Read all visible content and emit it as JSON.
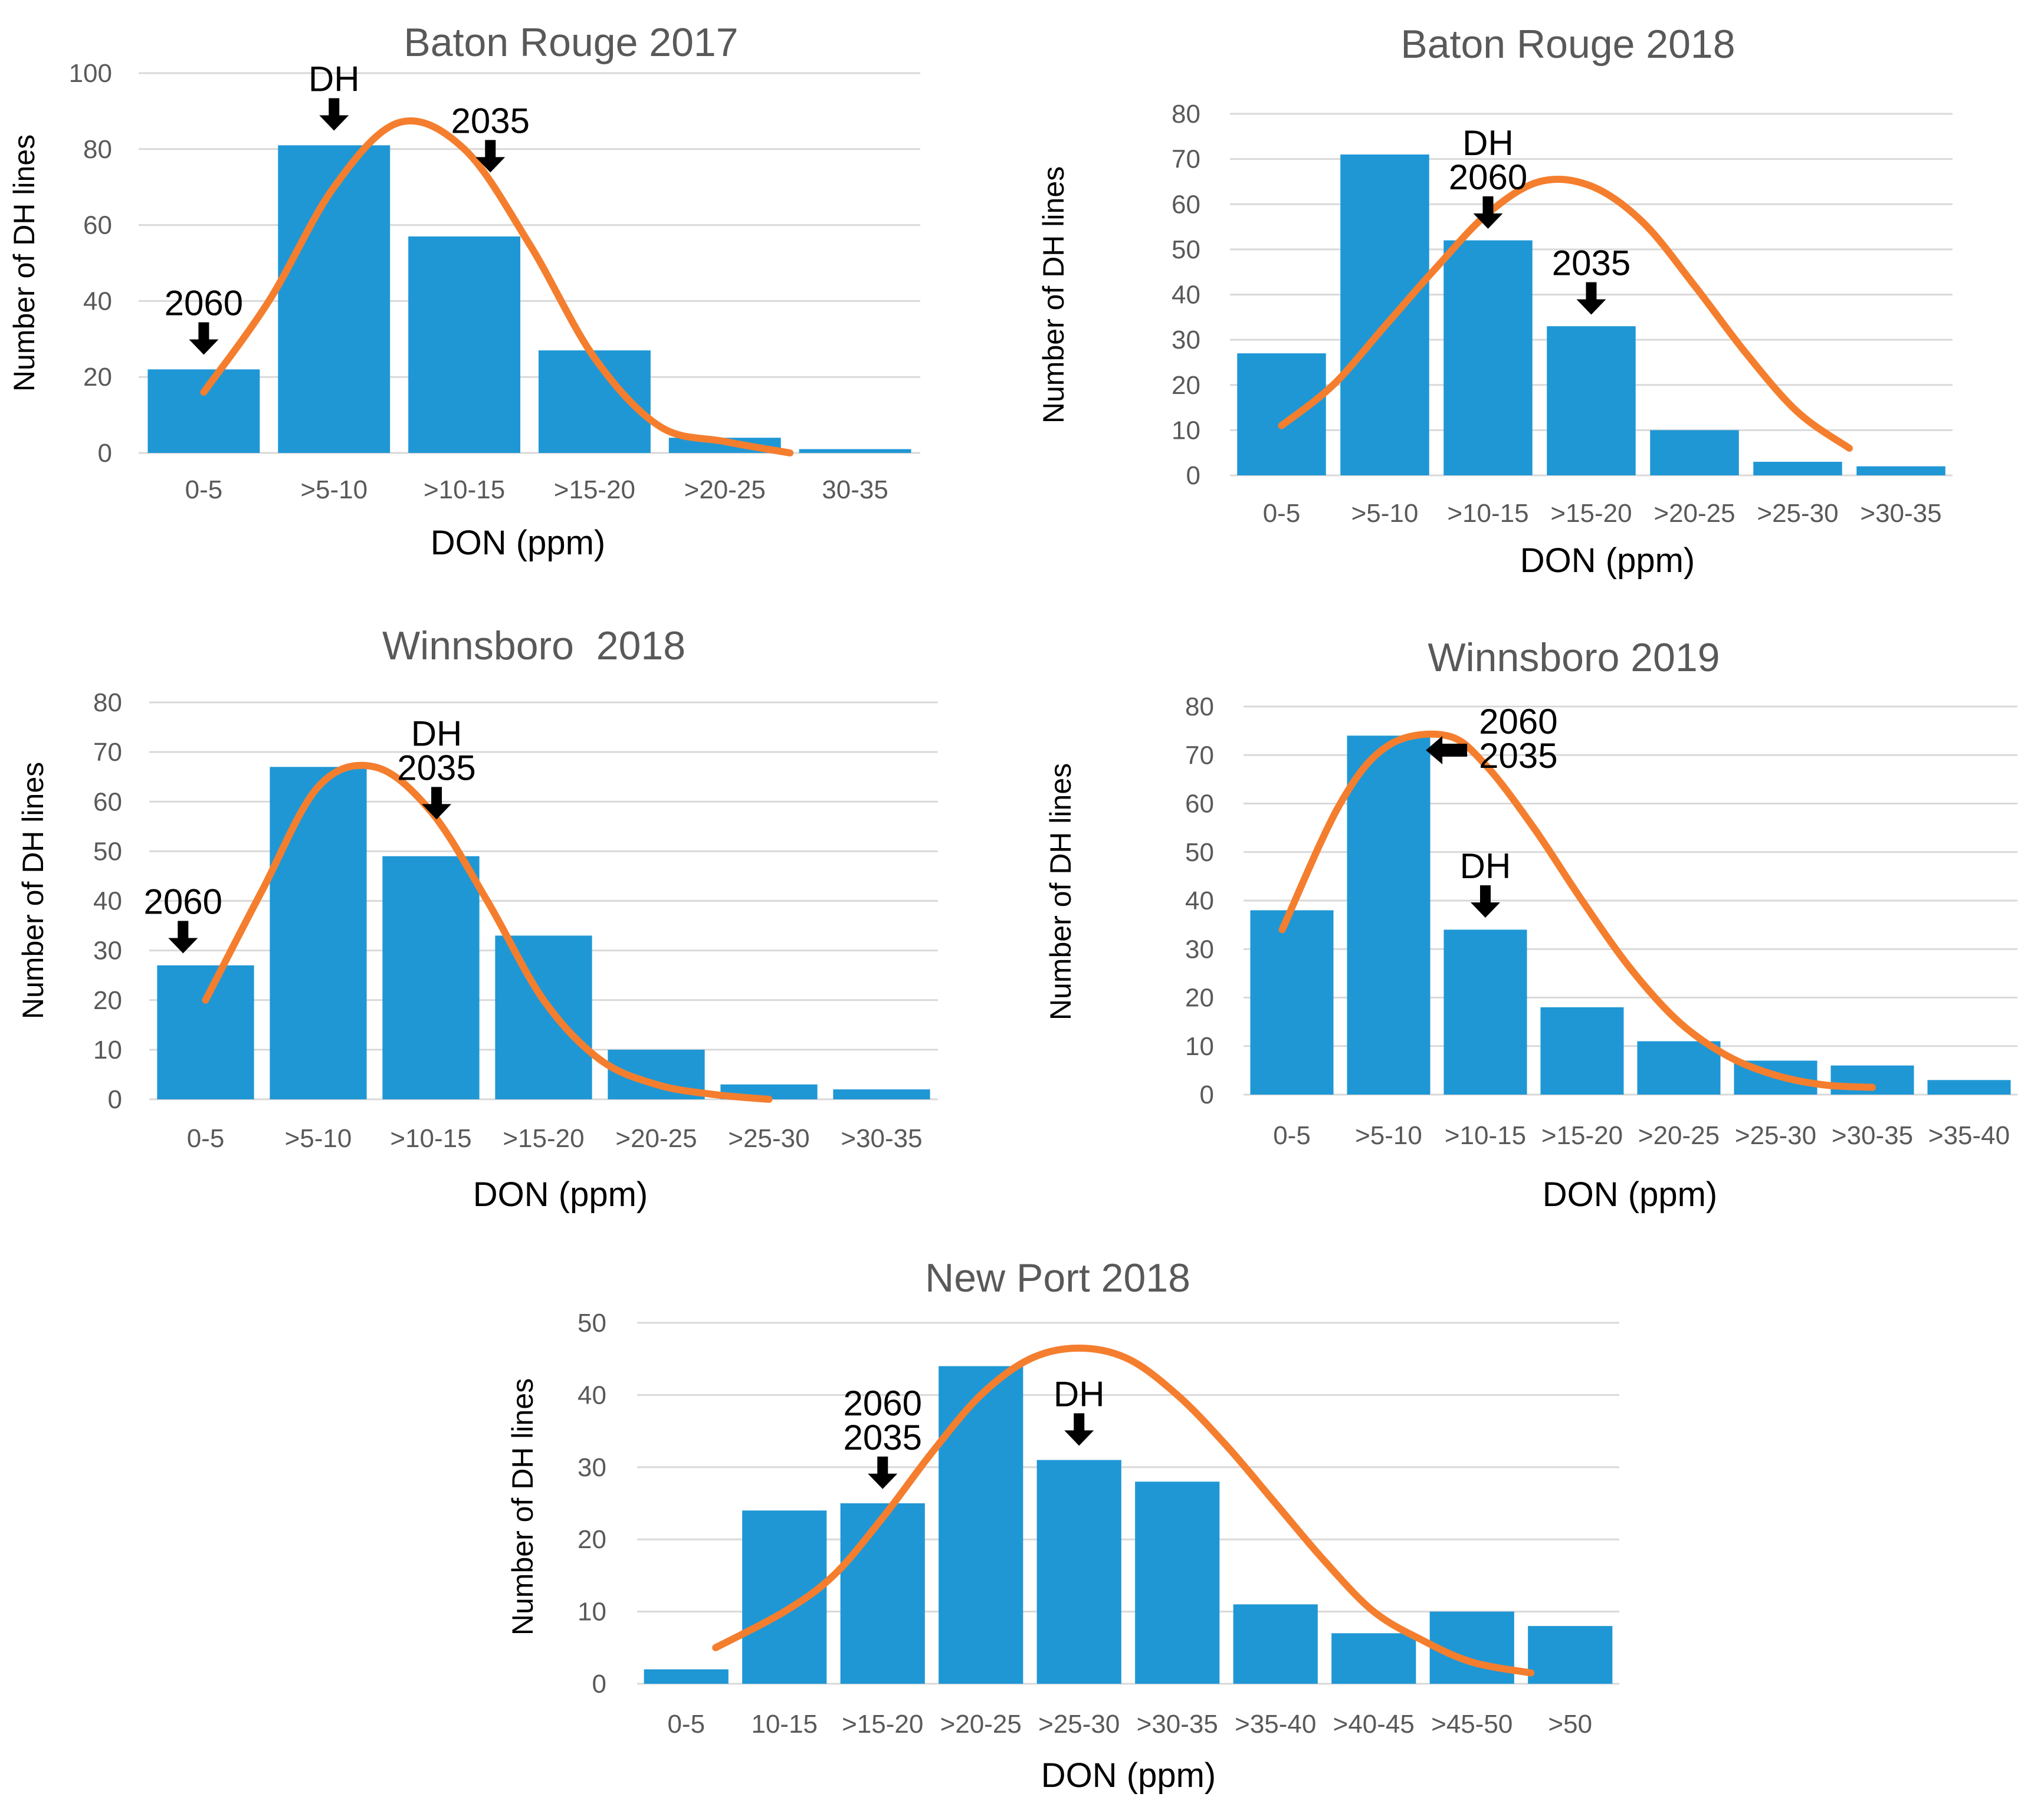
{
  "colors": {
    "bar": "#1f97d5",
    "curve": "#f47e2e",
    "grid": "#d9d9d9",
    "arrow": "#000000"
  },
  "chart_data": [
    {
      "type": "bar",
      "title": "Baton Rouge 2017",
      "xlabel": "DON (ppm)",
      "ylabel": "Number of DH lines",
      "ylim": [
        0,
        100
      ],
      "yticks": [
        "0",
        "20",
        "40",
        "60",
        "80",
        "100"
      ],
      "categories": [
        "0-5",
        ">5-10",
        ">10-15",
        ">15-20",
        ">20-25",
        "30-35"
      ],
      "values": [
        22,
        81,
        57,
        27,
        4,
        1
      ],
      "series": [
        {
          "name": "Number of DH lines",
          "type": "bar",
          "values": [
            22,
            81,
            57,
            27,
            4,
            1
          ]
        },
        {
          "name": "Normal curve",
          "type": "line",
          "x": [
            0,
            0.5,
            1,
            1.5,
            2,
            2.5,
            3,
            3.5,
            4,
            4.5
          ],
          "values": [
            16,
            40,
            70,
            87,
            80,
            55,
            25,
            7,
            3,
            0
          ]
        }
      ],
      "annotations": [
        {
          "lines": [
            "2060"
          ],
          "category_index": 0,
          "arrow": "down",
          "value": 24
        },
        {
          "lines": [
            "DH"
          ],
          "category_index": 1,
          "arrow": "down",
          "value": 83
        },
        {
          "lines": [
            "2035"
          ],
          "category_index": 2.2,
          "arrow": "down",
          "value": 72
        }
      ]
    },
    {
      "type": "bar",
      "title": "Baton Rouge 2018",
      "xlabel": "DON (ppm)",
      "ylabel": "Number of DH lines",
      "ylim": [
        0,
        80
      ],
      "yticks": [
        "0",
        "10",
        "20",
        "30",
        "40",
        "50",
        "60",
        "70",
        "80"
      ],
      "categories": [
        "0-5",
        ">5-10",
        ">10-15",
        ">15-20",
        ">20-25",
        ">25-30",
        ">30-35"
      ],
      "values": [
        27,
        71,
        52,
        33,
        10,
        3,
        2
      ],
      "series": [
        {
          "name": "Number of DH lines",
          "type": "bar",
          "values": [
            27,
            71,
            52,
            33,
            10,
            3,
            2
          ]
        },
        {
          "name": "Normal curve",
          "type": "line",
          "x": [
            0,
            0.5,
            1,
            1.5,
            2,
            2.5,
            3,
            3.5,
            4,
            4.5,
            5,
            5.5
          ],
          "values": [
            11,
            20,
            33,
            46,
            58,
            65,
            64,
            56,
            42,
            27,
            14,
            6
          ]
        }
      ],
      "annotations": [
        {
          "lines": [
            "DH",
            "2060"
          ],
          "category_index": 2,
          "arrow": "down",
          "value": 53
        },
        {
          "lines": [
            "2035"
          ],
          "category_index": 3,
          "arrow": "down",
          "value": 34
        }
      ]
    },
    {
      "type": "bar",
      "title": "Winnsboro  2018",
      "xlabel": "DON (ppm)",
      "ylabel": "Number of DH lines",
      "ylim": [
        0,
        80
      ],
      "yticks": [
        "0",
        "10",
        "20",
        "30",
        "40",
        "50",
        "60",
        "70",
        "80"
      ],
      "categories": [
        "0-5",
        ">5-10",
        ">10-15",
        ">15-20",
        ">20-25",
        ">25-30",
        ">30-35"
      ],
      "values": [
        27,
        67,
        49,
        33,
        10,
        3,
        2
      ],
      "series": [
        {
          "name": "Number of DH lines",
          "type": "bar",
          "values": [
            27,
            67,
            49,
            33,
            10,
            3,
            2
          ]
        },
        {
          "name": "Normal curve",
          "type": "line",
          "x": [
            0,
            0.5,
            1,
            1.5,
            2,
            2.5,
            3,
            3.5,
            4,
            4.5,
            5
          ],
          "values": [
            20,
            42,
            63,
            67,
            58,
            40,
            20,
            8,
            3,
            1,
            0
          ]
        }
      ],
      "annotations": [
        {
          "lines": [
            "2060"
          ],
          "category_index": -0.2,
          "arrow": "down",
          "value": 28
        },
        {
          "lines": [
            "DH",
            "2035"
          ],
          "category_index": 2.05,
          "arrow": "down",
          "value": 55
        }
      ]
    },
    {
      "type": "bar",
      "title": "Winnsboro 2019",
      "xlabel": "DON (ppm)",
      "ylabel": "Number of DH lines",
      "ylim": [
        0,
        80
      ],
      "yticks": [
        "0",
        "10",
        "20",
        "30",
        "40",
        "50",
        "60",
        "70",
        "80"
      ],
      "categories": [
        "0-5",
        ">5-10",
        ">10-15",
        ">15-20",
        ">20-25",
        ">25-30",
        ">30-35",
        ">35-40"
      ],
      "values": [
        38,
        74,
        34,
        18,
        11,
        7,
        6,
        3
      ],
      "series": [
        {
          "name": "Number of DH lines",
          "type": "bar",
          "values": [
            38,
            74,
            34,
            18,
            11,
            7,
            6,
            3
          ]
        },
        {
          "name": "Normal curve",
          "type": "line",
          "x": [
            -0.1,
            0.5,
            1,
            1.6,
            2,
            2.5,
            3,
            3.5,
            4,
            4.5,
            5,
            5.5,
            6
          ],
          "values": [
            34,
            60,
            72,
            74,
            68,
            55,
            40,
            26,
            15,
            8,
            4,
            2,
            1.5
          ]
        }
      ],
      "annotations": [
        {
          "lines": [
            "2060",
            "2035"
          ],
          "category_index": 1.95,
          "arrow": "left",
          "value": 71
        },
        {
          "lines": [
            "DH"
          ],
          "category_index": 2,
          "arrow": "down",
          "value": 35
        }
      ]
    },
    {
      "type": "bar",
      "title": "New Port 2018",
      "xlabel": "DON (ppm)",
      "ylabel": "Number of DH lines",
      "ylim": [
        0,
        50
      ],
      "yticks": [
        "0",
        "10",
        "20",
        "30",
        "40",
        "50"
      ],
      "categories": [
        "0-5",
        "10-15",
        ">15-20",
        ">20-25",
        ">25-30",
        ">30-35",
        ">35-40",
        ">40-45",
        ">45-50",
        ">50"
      ],
      "values": [
        2,
        24,
        25,
        44,
        31,
        28,
        11,
        7,
        10,
        8
      ],
      "series": [
        {
          "name": "Number of DH lines",
          "type": "bar",
          "values": [
            2,
            24,
            25,
            44,
            31,
            28,
            11,
            7,
            10,
            8
          ]
        },
        {
          "name": "Normal curve",
          "type": "line",
          "x": [
            0.3,
            1,
            1.5,
            2,
            2.5,
            3,
            3.5,
            4,
            4.5,
            5,
            5.5,
            6,
            6.5,
            7,
            7.5,
            8,
            8.6
          ],
          "values": [
            5,
            10,
            15,
            23,
            32,
            40,
            45,
            46.5,
            45,
            40,
            33,
            25,
            17,
            10,
            6,
            3,
            1.5
          ]
        }
      ],
      "annotations": [
        {
          "lines": [
            "2060",
            "2035"
          ],
          "category_index": 2,
          "arrow": "down",
          "value": 26
        },
        {
          "lines": [
            "DH"
          ],
          "category_index": 4,
          "arrow": "down",
          "value": 32
        }
      ]
    }
  ]
}
